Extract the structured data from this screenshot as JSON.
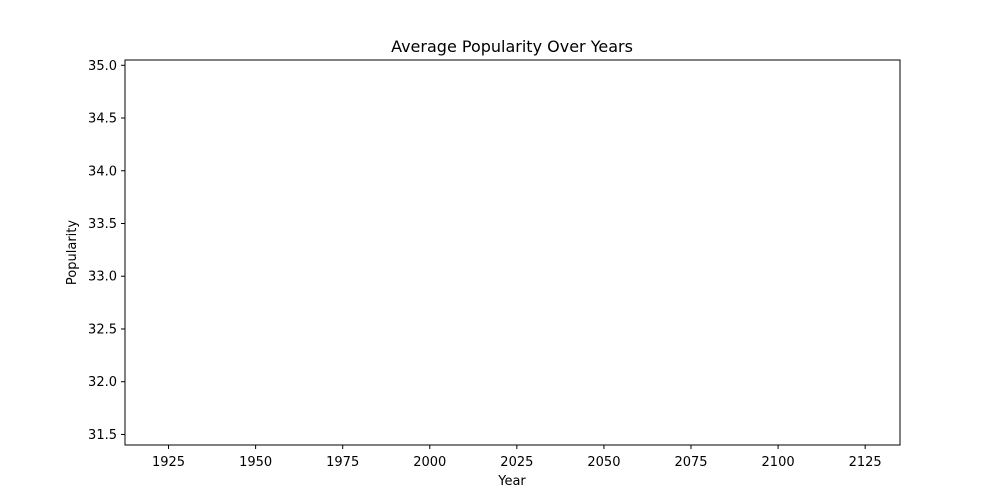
{
  "chart_data": {
    "type": "line",
    "title": "Average Popularity Over Years",
    "xlabel": "Year",
    "ylabel": "Popularity",
    "xlim": [
      1912.5,
      2135
    ],
    "ylim": [
      31.4,
      35.05
    ],
    "xticks": [
      1925,
      1950,
      1975,
      2000,
      2025,
      2050,
      2075,
      2100,
      2125
    ],
    "xtick_labels": [
      "1925",
      "1950",
      "1975",
      "2000",
      "2025",
      "2050",
      "2075",
      "2100",
      "2125"
    ],
    "yticks": [
      31.5,
      32.0,
      32.5,
      33.0,
      33.5,
      34.0,
      34.5,
      35.0
    ],
    "ytick_labels": [
      "31.5",
      "32.0",
      "32.5",
      "33.0",
      "33.5",
      "34.0",
      "34.5",
      "35.0"
    ],
    "series": [],
    "grid": false,
    "legend": false
  }
}
